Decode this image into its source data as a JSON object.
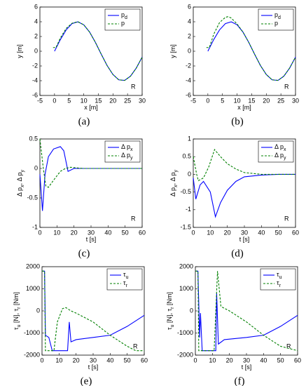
{
  "chart_data": [
    {
      "type": "line",
      "caption": "(a)",
      "xlabel": [
        "x [m]"
      ],
      "ylabel": [
        "y [m]"
      ],
      "annotation": "R",
      "legend": "northeast",
      "xlim": [
        -5,
        30
      ],
      "xticks": [
        -5,
        0,
        5,
        10,
        15,
        20,
        25,
        30
      ],
      "ylim": [
        -6,
        6
      ],
      "yticks": [
        -6,
        -4,
        -2,
        0,
        2,
        4,
        6
      ],
      "series": [
        {
          "name": [
            "p",
            "d"
          ],
          "color": "#0000ff",
          "dashed": false,
          "x": [
            0,
            2,
            4,
            6,
            8,
            10,
            12,
            14,
            16,
            18,
            20,
            22,
            24,
            26,
            28,
            30
          ],
          "values": [
            0,
            1.58,
            2.9,
            3.75,
            3.99,
            3.59,
            2.61,
            1.2,
            -0.4,
            -1.94,
            -3.16,
            -3.88,
            -3.96,
            -3.39,
            -2.28,
            -0.8
          ]
        },
        {
          "name": [
            "p"
          ],
          "color": "#008000",
          "dashed": true,
          "x": [
            -0.5,
            0.5,
            2,
            4,
            6,
            8,
            10,
            12,
            14,
            16,
            18,
            20,
            22,
            24,
            26,
            28,
            30
          ],
          "values": [
            0.5,
            0.5,
            1.8,
            3.1,
            3.8,
            4.0,
            3.59,
            2.61,
            1.2,
            -0.4,
            -1.94,
            -3.16,
            -3.88,
            -3.96,
            -3.39,
            -2.28,
            -0.8
          ]
        }
      ]
    },
    {
      "type": "line",
      "caption": "(b)",
      "xlabel": [
        "x [m]"
      ],
      "ylabel": [
        "y [m]"
      ],
      "annotation": "R",
      "legend": "northeast",
      "xlim": [
        -5,
        30
      ],
      "xticks": [
        -5,
        0,
        5,
        10,
        15,
        20,
        25,
        30
      ],
      "ylim": [
        -6,
        6
      ],
      "yticks": [
        -6,
        -4,
        -2,
        0,
        2,
        4,
        6
      ],
      "series": [
        {
          "name": [
            "p",
            "d"
          ],
          "color": "#0000ff",
          "dashed": false,
          "x": [
            0,
            2,
            4,
            6,
            8,
            10,
            12,
            14,
            16,
            18,
            20,
            22,
            24,
            26,
            28,
            30
          ],
          "values": [
            0,
            1.58,
            2.9,
            3.75,
            3.99,
            3.59,
            2.61,
            1.2,
            -0.4,
            -1.94,
            -3.16,
            -3.88,
            -3.96,
            -3.39,
            -2.28,
            -0.8
          ]
        },
        {
          "name": [
            "p"
          ],
          "color": "#008000",
          "dashed": true,
          "x": [
            -0.5,
            0.5,
            2,
            4,
            6,
            7,
            8,
            10,
            12,
            14,
            16,
            18,
            20,
            22,
            24,
            26,
            28,
            30
          ],
          "values": [
            0.5,
            0.5,
            2.3,
            3.9,
            4.6,
            4.7,
            4.5,
            3.7,
            2.61,
            1.2,
            -0.4,
            -1.94,
            -3.16,
            -3.88,
            -3.96,
            -3.39,
            -2.28,
            -0.8
          ]
        }
      ]
    },
    {
      "type": "line",
      "caption": "(c)",
      "xlabel": [
        "t [s]"
      ],
      "ylabel": [
        "Δ p",
        "x",
        ", Δ p",
        "y"
      ],
      "annotation": "R",
      "legend": "northeast",
      "xlim": [
        0,
        60
      ],
      "xticks": [
        0,
        10,
        20,
        30,
        40,
        50,
        60
      ],
      "ylim": [
        -1,
        0.5
      ],
      "yticks": [
        -1,
        -0.5,
        0,
        0.5
      ],
      "series": [
        {
          "name": [
            "Δ p",
            "x"
          ],
          "color": "#0000ff",
          "dashed": false,
          "x": [
            0,
            1.5,
            3,
            5,
            8,
            12,
            14,
            16.5,
            20,
            30,
            40,
            50,
            60
          ],
          "values": [
            -0.1,
            -0.72,
            -0.1,
            0.2,
            0.33,
            0.37,
            0.3,
            -0.05,
            0,
            0,
            0,
            0,
            0
          ]
        },
        {
          "name": [
            "Δ p",
            "y"
          ],
          "color": "#008000",
          "dashed": true,
          "x": [
            0,
            2,
            3.5,
            5,
            8,
            12,
            15,
            18,
            25,
            30,
            40,
            50,
            60
          ],
          "values": [
            0.5,
            0,
            -0.3,
            -0.32,
            -0.2,
            -0.05,
            0,
            0.02,
            0,
            0,
            0,
            0,
            0
          ]
        }
      ]
    },
    {
      "type": "line",
      "caption": "(d)",
      "xlabel": [
        "t [s]"
      ],
      "ylabel": [
        "Δ p",
        "x",
        ", Δ p",
        "y"
      ],
      "annotation": "R",
      "legend": "northeast",
      "xlim": [
        0,
        60
      ],
      "xticks": [
        0,
        10,
        20,
        30,
        40,
        50,
        60
      ],
      "ylim": [
        -1.5,
        1
      ],
      "yticks": [
        -1.5,
        -1,
        -0.5,
        0,
        0.5,
        1
      ],
      "series": [
        {
          "name": [
            "Δ p",
            "x"
          ],
          "color": "#0000ff",
          "dashed": false,
          "x": [
            0,
            1.5,
            4,
            6,
            10,
            13,
            16,
            20,
            25,
            30,
            40,
            50,
            60
          ],
          "values": [
            -0.1,
            -0.7,
            -0.3,
            -0.2,
            -0.5,
            -1.2,
            -0.8,
            -0.45,
            -0.2,
            -0.07,
            -0.02,
            0,
            0
          ]
        },
        {
          "name": [
            "Δ p",
            "y"
          ],
          "color": "#008000",
          "dashed": true,
          "x": [
            0,
            2,
            3,
            6,
            9,
            12.5,
            16,
            20,
            25,
            30,
            40,
            50,
            60
          ],
          "values": [
            0.5,
            0,
            -0.18,
            -0.1,
            0.2,
            0.7,
            0.5,
            0.3,
            0.15,
            0.05,
            0,
            0,
            0
          ]
        }
      ]
    },
    {
      "type": "line",
      "caption": "(e)",
      "xlabel": [
        "t [s]"
      ],
      "ylabel": [
        "τ",
        "u",
        " [N], τ",
        "r",
        " [Nm]"
      ],
      "annotation": "R",
      "legend": "northeast",
      "xlim": [
        0,
        60
      ],
      "xticks": [
        0,
        10,
        20,
        30,
        40,
        50,
        60
      ],
      "ylim": [
        -2000,
        2000
      ],
      "yticks": [
        -2000,
        -1000,
        0,
        1000,
        2000
      ],
      "series": [
        {
          "name": [
            "τ",
            "u"
          ],
          "color": "#0000ff",
          "dashed": false,
          "x": [
            0,
            1.5,
            2,
            4,
            6,
            15,
            16,
            17,
            20,
            30,
            40,
            50,
            60
          ],
          "values": [
            1800,
            1800,
            -1100,
            -1200,
            -1800,
            -1800,
            -500,
            -1400,
            -1300,
            -1200,
            -1100,
            -700,
            -200
          ]
        },
        {
          "name": [
            "τ",
            "r"
          ],
          "color": "#008000",
          "dashed": true,
          "x": [
            0,
            1.5,
            2,
            7,
            9,
            12,
            14,
            17,
            20,
            30,
            40,
            50,
            55,
            60
          ],
          "values": [
            1800,
            1800,
            -1800,
            -1800,
            -500,
            100,
            150,
            0,
            -100,
            -500,
            -1100,
            -1600,
            -1800,
            -1800
          ]
        }
      ]
    },
    {
      "type": "line",
      "caption": "(f)",
      "xlabel": [
        "t [s]"
      ],
      "ylabel": [
        "τ",
        "u",
        " [N], τ",
        "r",
        " [Nm]"
      ],
      "annotation": "R",
      "legend": "northeast",
      "xlim": [
        0,
        60
      ],
      "xticks": [
        0,
        10,
        20,
        30,
        40,
        50,
        60
      ],
      "ylim": [
        -2000,
        2000
      ],
      "yticks": [
        -2000,
        -1000,
        0,
        1000,
        2000
      ],
      "series": [
        {
          "name": [
            "τ",
            "u"
          ],
          "color": "#0000ff",
          "dashed": false,
          "x": [
            0,
            1.5,
            2.5,
            3,
            4,
            12,
            12.5,
            13.5,
            17,
            30,
            40,
            50,
            60
          ],
          "values": [
            1800,
            1800,
            -1200,
            -100,
            -1800,
            -1800,
            800,
            -1500,
            -1300,
            -1200,
            -1100,
            -700,
            -200
          ]
        },
        {
          "name": [
            "τ",
            "r"
          ],
          "color": "#008000",
          "dashed": true,
          "x": [
            0,
            1.5,
            2,
            11,
            13,
            15,
            20,
            30,
            40,
            50,
            60
          ],
          "values": [
            1800,
            1800,
            -1800,
            -1800,
            1800,
            200,
            0,
            -500,
            -1100,
            -1600,
            -1800
          ]
        }
      ]
    }
  ]
}
